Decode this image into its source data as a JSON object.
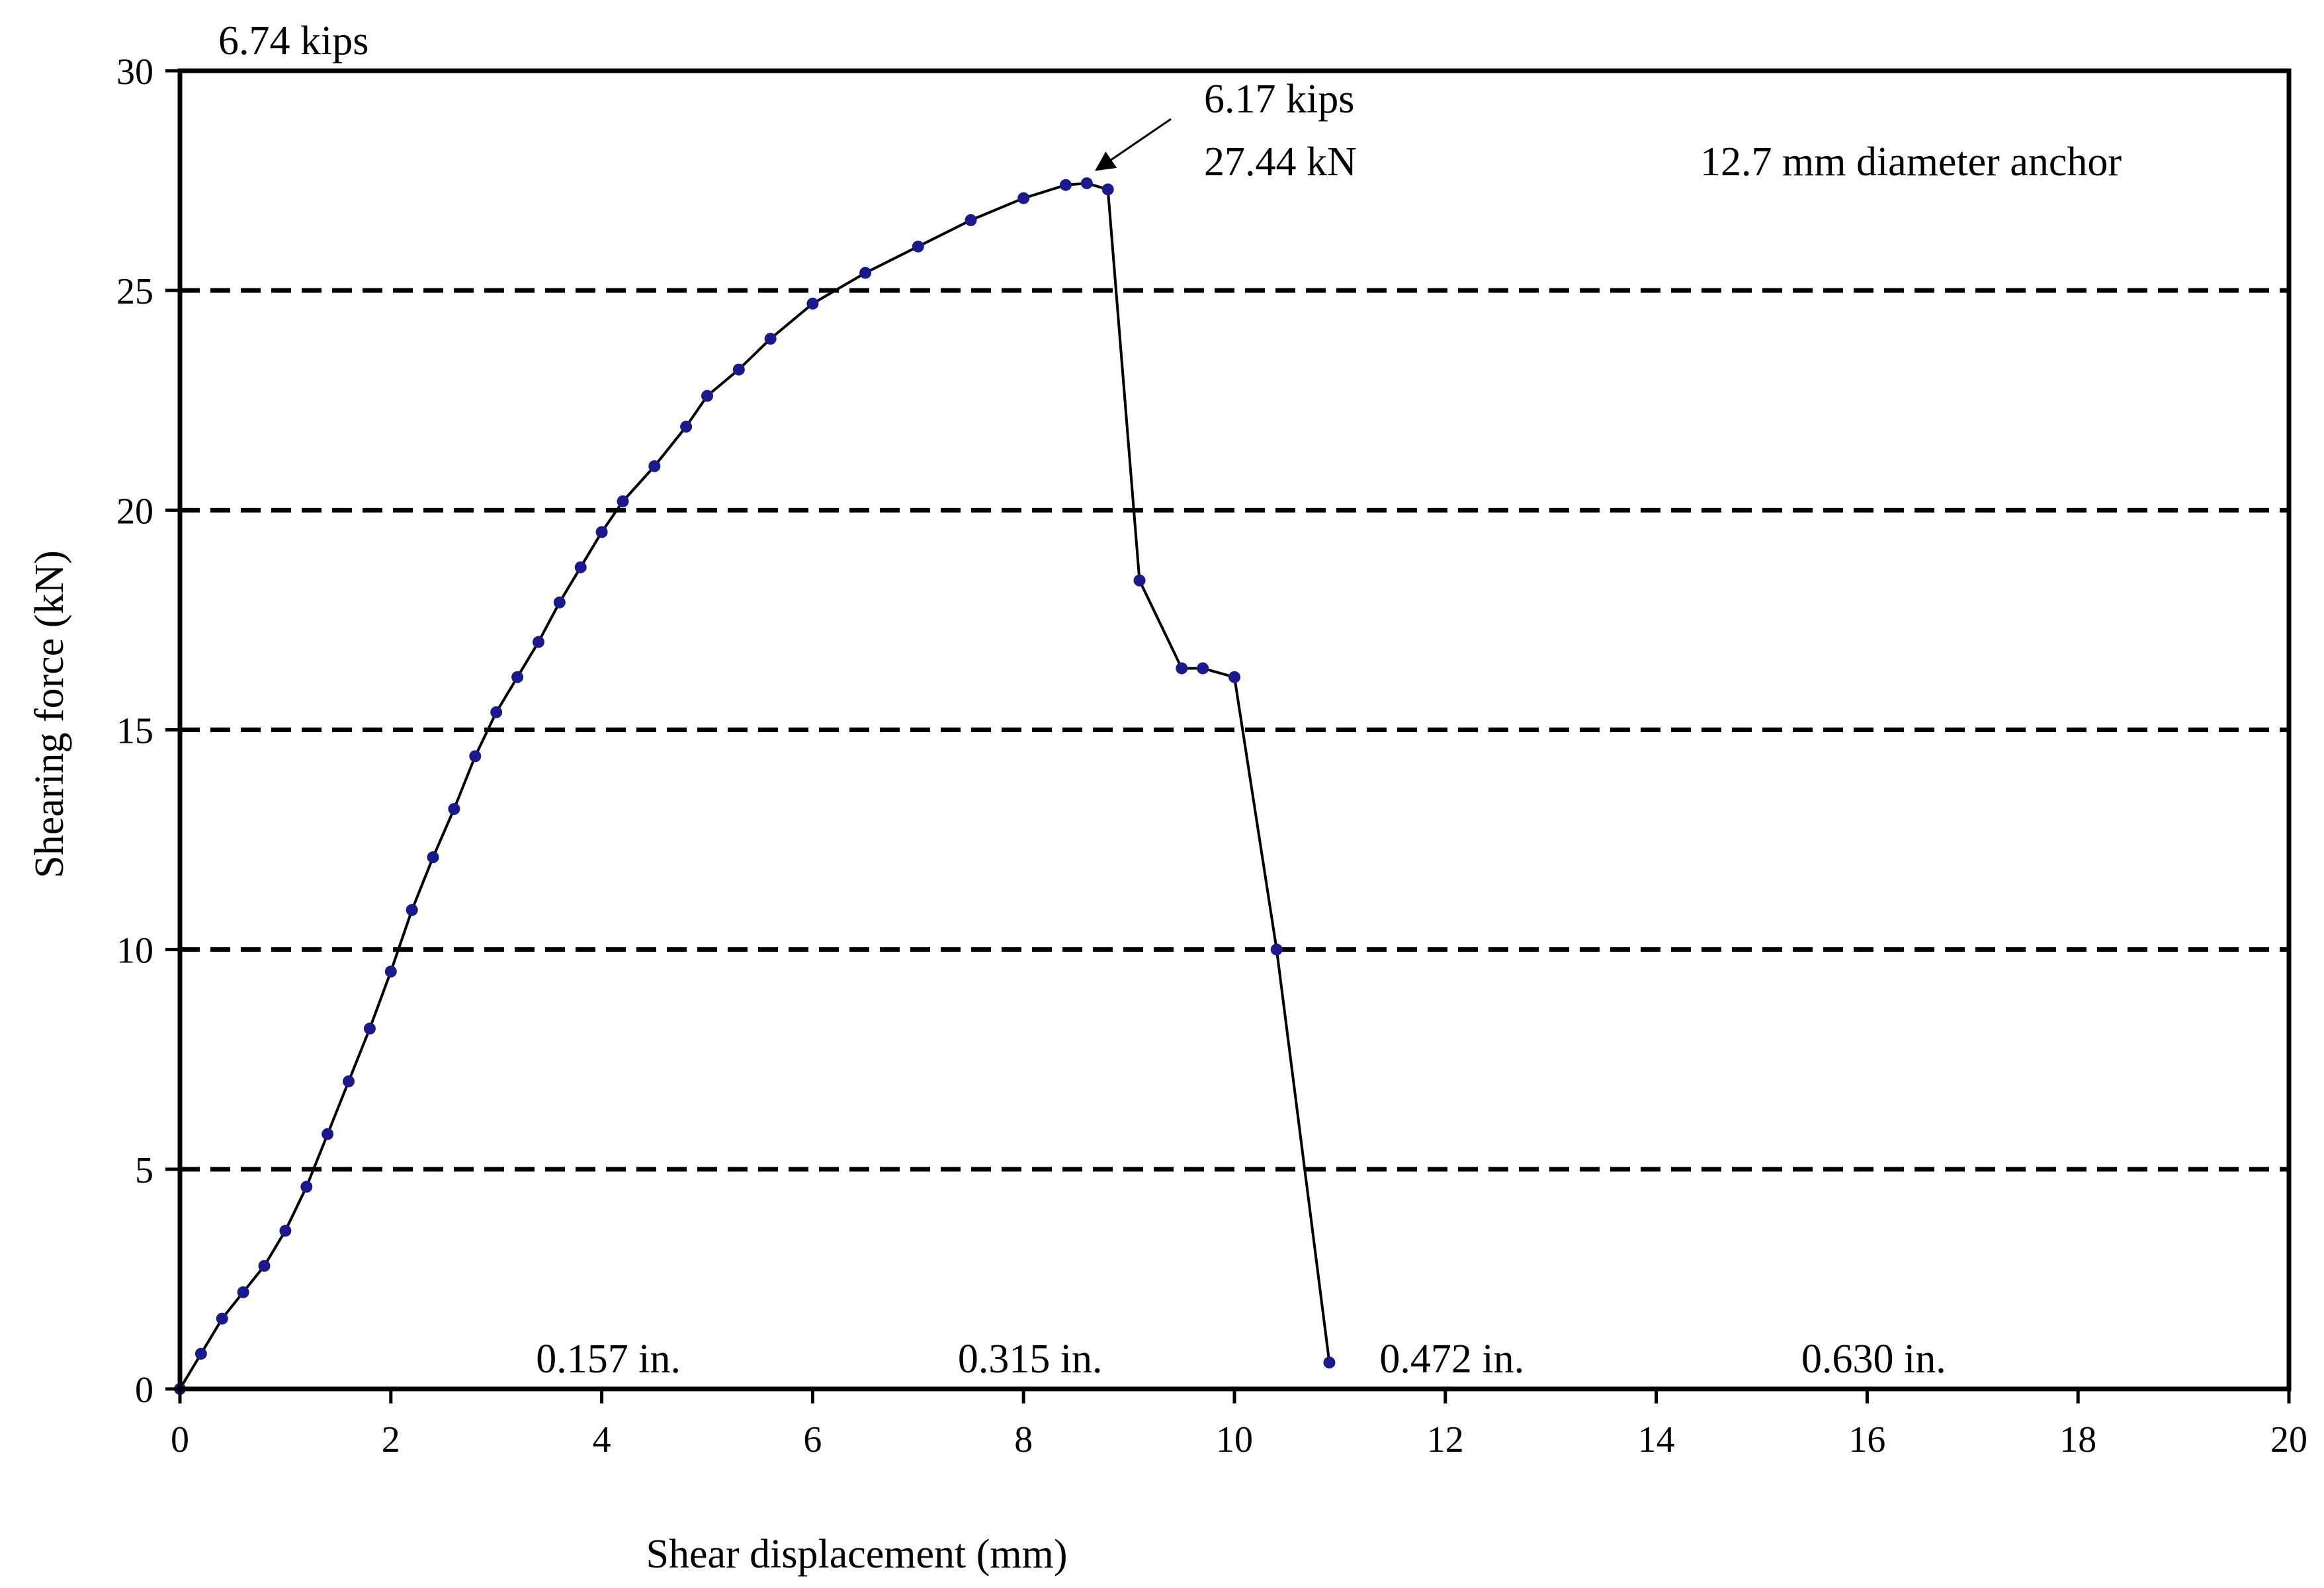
{
  "chart_data": {
    "type": "line",
    "xlabel": "Shear displacement (mm)",
    "ylabel": "Shearing force (kN)",
    "xlim": [
      0,
      20
    ],
    "ylim": [
      0,
      30
    ],
    "x_ticks": [
      "0",
      "2",
      "4",
      "6",
      "8",
      "10",
      "12",
      "14",
      "16",
      "18",
      "20"
    ],
    "y_ticks": [
      "0",
      "5",
      "10",
      "15",
      "20",
      "25",
      "30"
    ],
    "grid": "horizontal dashed",
    "series": [
      {
        "color": "#1a1a8c",
        "points": [
          [
            0,
            0
          ],
          [
            0.2,
            0.8
          ],
          [
            0.4,
            1.6
          ],
          [
            0.6,
            2.2
          ],
          [
            0.8,
            2.8
          ],
          [
            1.0,
            3.6
          ],
          [
            1.2,
            4.6
          ],
          [
            1.4,
            5.8
          ],
          [
            1.6,
            7.0
          ],
          [
            1.8,
            8.2
          ],
          [
            2.0,
            9.5
          ],
          [
            2.2,
            10.9
          ],
          [
            2.4,
            12.1
          ],
          [
            2.6,
            13.2
          ],
          [
            2.8,
            14.4
          ],
          [
            3.0,
            15.4
          ],
          [
            3.2,
            16.2
          ],
          [
            3.4,
            17.0
          ],
          [
            3.6,
            17.9
          ],
          [
            3.8,
            18.7
          ],
          [
            4.0,
            19.5
          ],
          [
            4.2,
            20.2
          ],
          [
            4.5,
            21.0
          ],
          [
            4.8,
            21.9
          ],
          [
            5.0,
            22.6
          ],
          [
            5.3,
            23.2
          ],
          [
            5.6,
            23.9
          ],
          [
            6.0,
            24.7
          ],
          [
            6.5,
            25.4
          ],
          [
            7.0,
            26.0
          ],
          [
            7.5,
            26.6
          ],
          [
            8.0,
            27.1
          ],
          [
            8.4,
            27.4
          ],
          [
            8.6,
            27.44
          ],
          [
            8.8,
            27.3
          ],
          [
            9.1,
            18.4
          ],
          [
            9.5,
            16.4
          ],
          [
            9.7,
            16.4
          ],
          [
            10.0,
            16.2
          ],
          [
            10.4,
            10.0
          ],
          [
            10.9,
            0.6
          ]
        ]
      }
    ],
    "annotations": {
      "top_left": "6.74 kips",
      "peak_kips": "6.17 kips",
      "peak_kn": "27.44 kN",
      "specimen": "12.7 mm diameter anchor",
      "inch_labels": [
        {
          "x": 4,
          "text": "0.157 in."
        },
        {
          "x": 8,
          "text": "0.315 in."
        },
        {
          "x": 12,
          "text": "0.472 in."
        },
        {
          "x": 16,
          "text": "0.630 in."
        }
      ]
    }
  }
}
